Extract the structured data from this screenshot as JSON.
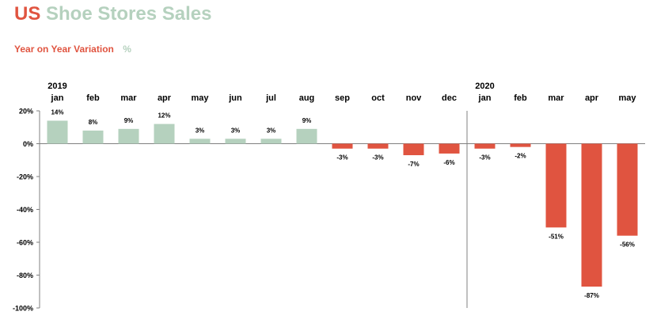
{
  "header": {
    "title_part1": "US",
    "title_part2": "Shoe Stores Sales",
    "subtitle": "Year on Year Variation",
    "unit": "%"
  },
  "colors": {
    "positive": "#b5d1be",
    "negative": "#e05440",
    "axis": "#808080"
  },
  "chart_data": {
    "type": "bar",
    "title": "US Shoe Stores Sales",
    "subtitle": "Year on Year Variation",
    "ylabel": "%",
    "ylim": [
      -100,
      20
    ],
    "yticks": [
      20,
      0,
      -20,
      -40,
      -60,
      -80,
      -100
    ],
    "ytick_labels": [
      "20%",
      "0%",
      "-20%",
      "-40%",
      "-60%",
      "-80%",
      "-100%"
    ],
    "years": [
      {
        "label": "2019",
        "start_index": 0
      },
      {
        "label": "2020",
        "start_index": 12
      }
    ],
    "categories": [
      "jan",
      "feb",
      "mar",
      "apr",
      "may",
      "jun",
      "jul",
      "aug",
      "sep",
      "oct",
      "nov",
      "dec",
      "jan",
      "feb",
      "mar",
      "apr",
      "may"
    ],
    "values": [
      14,
      8,
      9,
      12,
      3,
      3,
      3,
      9,
      -3,
      -3,
      -7,
      -6,
      -3,
      -2,
      -51,
      -87,
      -56
    ],
    "value_labels": [
      "14%",
      "8%",
      "9%",
      "12%",
      "3%",
      "3%",
      "3%",
      "9%",
      "-3%",
      "-3%",
      "-7%",
      "-6%",
      "-3%",
      "-2%",
      "-51%",
      "-87%",
      "-56%"
    ],
    "grid": false,
    "legend": "none"
  }
}
